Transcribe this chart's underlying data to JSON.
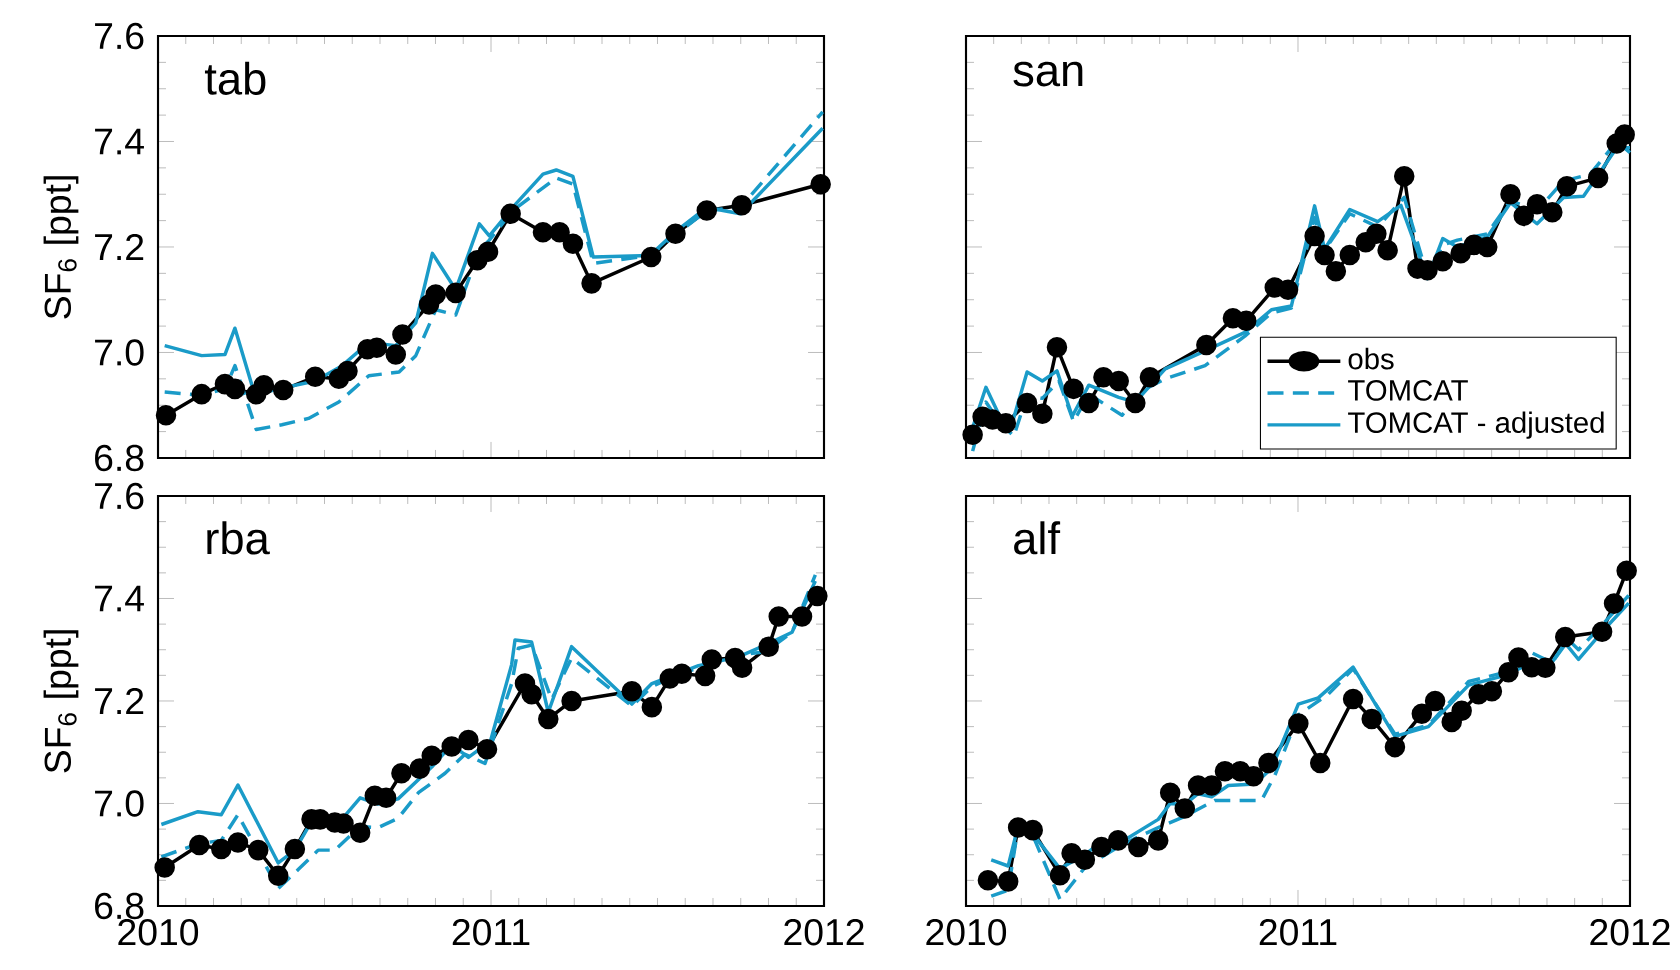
{
  "chart_data": [
    {
      "type": "line",
      "title": "tab",
      "ylabel": "SF$_{6}$ [ppt]",
      "xlim": [
        2010,
        2012
      ],
      "xticks": [
        2010,
        2011,
        2012
      ],
      "ylim": [
        6.8,
        7.6
      ],
      "yticks": [
        6.8,
        {
          "value": 7.0,
          "label": "7.0"
        },
        7.2,
        7.4,
        7.6
      ],
      "tick_labels": "y",
      "series": [
        {
          "color": "#000000",
          "marker": "circle",
          "line_style": "solid",
          "x": [
            2010.024,
            2010.131,
            2010.201,
            2010.231,
            2010.295,
            2010.318,
            2010.376,
            2010.472,
            2010.543,
            2010.569,
            2010.629,
            2010.657,
            2010.714,
            2010.734,
            2010.814,
            2010.834,
            2010.894,
            2010.959,
            2010.991,
            2011.059,
            2011.156,
            2011.206,
            2011.246,
            2011.302,
            2011.481,
            2011.554,
            2011.648,
            2011.753,
            2011.99
          ],
          "values": [
            6.881,
            6.921,
            6.94,
            6.931,
            6.921,
            6.938,
            6.929,
            6.954,
            6.95,
            6.965,
            7.006,
            7.009,
            6.996,
            7.034,
            7.091,
            7.11,
            7.113,
            7.175,
            7.191,
            7.263,
            7.228,
            7.228,
            7.206,
            7.131,
            7.181,
            7.225,
            7.269,
            7.279,
            7.319
          ]
        },
        {
          "color": "#1a9bc8",
          "marker": "none",
          "line_style": "dashed",
          "x": [
            2010.02,
            2010.131,
            2010.201,
            2010.231,
            2010.295,
            2010.372,
            2010.452,
            2010.543,
            2010.633,
            2010.724,
            2010.774,
            2010.834,
            2010.894,
            2010.965,
            2010.995,
            2011.065,
            2011.196,
            2011.246,
            2011.307,
            2011.477,
            2011.558,
            2011.648,
            2011.749,
            2011.996
          ],
          "values": [
            6.925,
            6.919,
            6.931,
            6.975,
            6.854,
            6.863,
            6.875,
            6.906,
            6.956,
            6.963,
            6.994,
            7.081,
            7.071,
            7.194,
            7.213,
            7.269,
            7.331,
            7.319,
            7.169,
            7.184,
            7.225,
            7.269,
            7.275,
            7.456
          ]
        },
        {
          "color": "#1a9bc8",
          "marker": "none",
          "line_style": "solid",
          "x": [
            2010.02,
            2010.131,
            2010.201,
            2010.231,
            2010.291,
            2010.362,
            2010.472,
            2010.553,
            2010.633,
            2010.714,
            2010.774,
            2010.824,
            2010.894,
            2010.965,
            2010.995,
            2011.065,
            2011.156,
            2011.196,
            2011.246,
            2011.307,
            2011.477,
            2011.558,
            2011.648,
            2011.749,
            2011.996
          ],
          "values": [
            7.013,
            6.994,
            6.996,
            7.046,
            6.919,
            6.931,
            6.946,
            6.975,
            7.019,
            7.013,
            7.056,
            7.188,
            7.119,
            7.244,
            7.221,
            7.275,
            7.338,
            7.346,
            7.334,
            7.181,
            7.184,
            7.231,
            7.275,
            7.263,
            7.425
          ]
        }
      ]
    },
    {
      "type": "line",
      "title": "san",
      "xlim": [
        2010,
        2012
      ],
      "xticks": [
        2010,
        2011,
        2012
      ],
      "ylim": [
        6.8,
        7.6
      ],
      "yticks": [
        6.8,
        7,
        7.2,
        7.4,
        7.6
      ],
      "tick_labels": false,
      "legend": "bottom right",
      "series": [
        {
          "name": "obs",
          "color": "#000000",
          "marker": "circle",
          "line_style": "solid",
          "x": [
            2010.02,
            2010.05,
            2010.08,
            2010.12,
            2010.184,
            2010.23,
            2010.274,
            2010.324,
            2010.37,
            2010.414,
            2010.46,
            2010.51,
            2010.554,
            2010.724,
            2010.804,
            2010.844,
            2010.93,
            2010.97,
            2011.05,
            2011.08,
            2011.114,
            2011.156,
            2011.204,
            2011.236,
            2011.27,
            2011.32,
            2011.36,
            2011.39,
            2011.436,
            2011.49,
            2011.53,
            2011.57,
            2011.64,
            2011.68,
            2011.72,
            2011.766,
            2011.81,
            2011.904,
            2011.96,
            2011.984
          ],
          "values": [
            6.844,
            6.878,
            6.873,
            6.866,
            6.904,
            6.884,
            7.01,
            6.931,
            6.904,
            6.953,
            6.946,
            6.904,
            6.953,
            7.014,
            7.065,
            7.06,
            7.123,
            7.119,
            7.221,
            7.185,
            7.154,
            7.185,
            7.209,
            7.225,
            7.194,
            7.334,
            7.159,
            7.156,
            7.173,
            7.188,
            7.204,
            7.2,
            7.3,
            7.259,
            7.281,
            7.266,
            7.315,
            7.331,
            7.396,
            7.413
          ]
        },
        {
          "name": "TOMCAT",
          "color": "#1a9bc8",
          "marker": "none",
          "line_style": "dashed",
          "x": [
            2010.02,
            2010.06,
            2010.1,
            2010.144,
            2010.184,
            2010.23,
            2010.28,
            2010.324,
            2010.37,
            2010.47,
            2010.54,
            2010.6,
            2010.72,
            2010.84,
            2010.92,
            2010.98,
            2011.05,
            2011.08,
            2011.156,
            2011.24,
            2011.32,
            2011.39,
            2011.436,
            2011.48,
            2011.57,
            2011.64,
            2011.72,
            2011.8,
            2011.88,
            2011.96,
            2012.0
          ],
          "values": [
            6.813,
            6.906,
            6.869,
            6.841,
            6.919,
            6.913,
            6.946,
            6.869,
            6.921,
            6.881,
            6.931,
            6.95,
            6.975,
            7.031,
            7.075,
            7.084,
            7.256,
            7.194,
            7.263,
            7.238,
            7.294,
            7.144,
            7.204,
            7.213,
            7.225,
            7.288,
            7.269,
            7.325,
            7.338,
            7.4,
            7.379
          ]
        },
        {
          "name": "TOMCAT - adjusted",
          "color": "#1a9bc8",
          "marker": "none",
          "line_style": "solid",
          "x": [
            2010.01,
            2010.06,
            2010.1,
            2010.136,
            2010.184,
            2010.23,
            2010.274,
            2010.32,
            2010.37,
            2010.46,
            2010.51,
            2010.6,
            2010.72,
            2010.84,
            2010.92,
            2010.98,
            2011.05,
            2011.08,
            2011.156,
            2011.24,
            2011.31,
            2011.39,
            2011.436,
            2011.48,
            2011.57,
            2011.64,
            2011.72,
            2011.8,
            2011.86,
            2011.96,
            2012.0
          ],
          "values": [
            6.838,
            6.934,
            6.881,
            6.859,
            6.963,
            6.946,
            6.965,
            6.879,
            6.938,
            6.915,
            6.906,
            6.969,
            7.003,
            7.038,
            7.081,
            7.088,
            7.278,
            7.196,
            7.271,
            7.248,
            7.279,
            7.14,
            7.216,
            7.2,
            7.219,
            7.284,
            7.244,
            7.294,
            7.296,
            7.388,
            7.388
          ]
        }
      ]
    },
    {
      "type": "line",
      "title": "rba",
      "ylabel": "SF$_{6}$ [ppt]",
      "xlim": [
        2010,
        2012
      ],
      "xticks": [
        2010,
        2011,
        2012
      ],
      "ylim": [
        6.8,
        7.6
      ],
      "yticks": [
        6.8,
        {
          "value": 7.0,
          "label": "7.0"
        },
        7.2,
        7.4,
        7.6
      ],
      "series": [
        {
          "color": "#000000",
          "marker": "circle",
          "line_style": "solid",
          "x": [
            2010.02,
            2010.124,
            2010.19,
            2010.24,
            2010.301,
            2010.361,
            2010.411,
            2010.461,
            2010.487,
            2010.531,
            2010.557,
            2010.607,
            2010.651,
            2010.685,
            2010.731,
            2010.786,
            2010.822,
            2010.882,
            2010.932,
            2010.988,
            2011.102,
            2011.122,
            2011.172,
            2011.242,
            2011.423,
            2011.483,
            2011.537,
            2011.573,
            2011.643,
            2011.663,
            2011.733,
            2011.754,
            2011.834,
            2011.864,
            2011.934,
            2011.98
          ],
          "values": [
            6.875,
            6.919,
            6.911,
            6.924,
            6.909,
            6.859,
            6.911,
            6.969,
            6.969,
            6.963,
            6.961,
            6.943,
            7.015,
            7.011,
            7.059,
            7.068,
            7.093,
            7.111,
            7.124,
            7.106,
            7.234,
            7.213,
            7.165,
            7.2,
            7.219,
            7.188,
            7.244,
            7.253,
            7.249,
            7.281,
            7.284,
            7.265,
            7.306,
            7.365,
            7.365,
            7.405
          ]
        },
        {
          "color": "#1a9bc8",
          "marker": "none",
          "line_style": "dashed",
          "x": [
            2010.01,
            2010.12,
            2010.19,
            2010.24,
            2010.361,
            2010.421,
            2010.481,
            2010.531,
            2010.607,
            2010.661,
            2010.721,
            2010.782,
            2010.862,
            2010.922,
            2010.982,
            2011.062,
            2011.082,
            2011.122,
            2011.182,
            2011.242,
            2011.423,
            2011.483,
            2011.543,
            2011.623,
            2011.743,
            2011.824,
            2011.904,
            2011.974
          ],
          "values": [
            6.896,
            6.921,
            6.928,
            6.978,
            6.834,
            6.871,
            6.909,
            6.909,
            6.955,
            6.953,
            6.971,
            7.021,
            7.059,
            7.096,
            7.078,
            7.234,
            7.303,
            7.309,
            7.203,
            7.284,
            7.19,
            7.228,
            7.246,
            7.265,
            7.29,
            7.296,
            7.334,
            7.446
          ]
        },
        {
          "color": "#1a9bc8",
          "marker": "none",
          "line_style": "solid",
          "x": [
            2010.01,
            2010.12,
            2010.19,
            2010.24,
            2010.361,
            2010.411,
            2010.461,
            2010.531,
            2010.607,
            2010.661,
            2010.721,
            2010.822,
            2010.882,
            2010.932,
            2010.998,
            2011.062,
            2011.072,
            2011.122,
            2011.172,
            2011.242,
            2011.423,
            2011.483,
            2011.543,
            2011.623,
            2011.743,
            2011.824,
            2011.904,
            2011.974
          ],
          "values": [
            6.959,
            6.984,
            6.978,
            7.036,
            6.884,
            6.909,
            6.965,
            6.953,
            7.011,
            6.999,
            7.009,
            7.071,
            7.115,
            7.09,
            7.121,
            7.271,
            7.319,
            7.315,
            7.178,
            7.306,
            7.194,
            7.234,
            7.249,
            7.269,
            7.286,
            7.309,
            7.334,
            7.434
          ]
        }
      ]
    },
    {
      "type": "line",
      "title": "alf",
      "xlim": [
        2010,
        2012
      ],
      "xticks": [
        2010,
        2011,
        2012
      ],
      "ylim": [
        6.8,
        7.6
      ],
      "yticks": [
        6.8,
        7,
        7.2,
        7.4,
        7.6
      ],
      "tick_labels": "x",
      "series": [
        {
          "color": "#000000",
          "marker": "circle",
          "line_style": "solid",
          "x": [
            2010.066,
            2010.127,
            2010.157,
            2010.201,
            2010.283,
            2010.318,
            2010.358,
            2010.408,
            2010.458,
            2010.519,
            2010.579,
            2010.615,
            2010.659,
            2010.699,
            2010.74,
            2010.78,
            2010.826,
            2010.866,
            2010.911,
            2011.001,
            2011.067,
            2011.166,
            2011.222,
            2011.292,
            2011.373,
            2011.413,
            2011.463,
            2011.493,
            2011.544,
            2011.584,
            2011.634,
            2011.664,
            2011.704,
            2011.745,
            2011.805,
            2011.916,
            2011.952,
            2011.99
          ],
          "values": [
            6.85,
            6.848,
            6.953,
            6.948,
            6.86,
            6.903,
            6.89,
            6.915,
            6.928,
            6.915,
            6.928,
            7.021,
            6.99,
            7.035,
            7.035,
            7.063,
            7.063,
            7.053,
            7.079,
            7.156,
            7.079,
            7.204,
            7.165,
            7.11,
            7.175,
            7.2,
            7.159,
            7.181,
            7.213,
            7.219,
            7.256,
            7.285,
            7.266,
            7.265,
            7.325,
            7.335,
            7.39,
            7.454
          ]
        },
        {
          "color": "#1a9bc8",
          "marker": "none",
          "line_style": "dashed",
          "x": [
            2010.076,
            2010.127,
            2010.157,
            2010.197,
            2010.283,
            2010.358,
            2010.468,
            2010.579,
            2010.659,
            2010.75,
            2010.83,
            2010.89,
            2010.931,
            2011.001,
            2011.091,
            2011.166,
            2011.292,
            2011.393,
            2011.514,
            2011.624,
            2011.704,
            2011.765,
            2011.815,
            2011.845,
            2011.916,
            2011.996
          ],
          "values": [
            6.819,
            6.831,
            6.953,
            6.944,
            6.813,
            6.875,
            6.919,
            6.953,
            6.975,
            7.006,
            7.006,
            7.006,
            7.056,
            7.173,
            7.213,
            7.263,
            7.135,
            7.153,
            7.238,
            7.256,
            7.294,
            7.275,
            7.319,
            7.3,
            7.348,
            7.406
          ]
        },
        {
          "color": "#1a9bc8",
          "marker": "none",
          "line_style": "solid",
          "x": [
            2010.076,
            2010.127,
            2010.157,
            2010.197,
            2010.283,
            2010.358,
            2010.408,
            2010.468,
            2010.579,
            2010.615,
            2010.659,
            2010.699,
            2010.74,
            2010.79,
            2010.87,
            2010.921,
            2011.001,
            2011.061,
            2011.166,
            2011.292,
            2011.393,
            2011.514,
            2011.624,
            2011.704,
            2011.765,
            2011.805,
            2011.845,
            2011.916,
            2011.996
          ],
          "values": [
            6.89,
            6.878,
            6.956,
            6.944,
            6.873,
            6.9,
            6.925,
            6.925,
            6.969,
            7.0,
            6.998,
            7.019,
            7.013,
            7.035,
            7.038,
            7.069,
            7.194,
            7.206,
            7.266,
            7.131,
            7.15,
            7.231,
            7.25,
            7.275,
            7.275,
            7.313,
            7.281,
            7.335,
            7.391
          ]
        }
      ]
    }
  ]
}
